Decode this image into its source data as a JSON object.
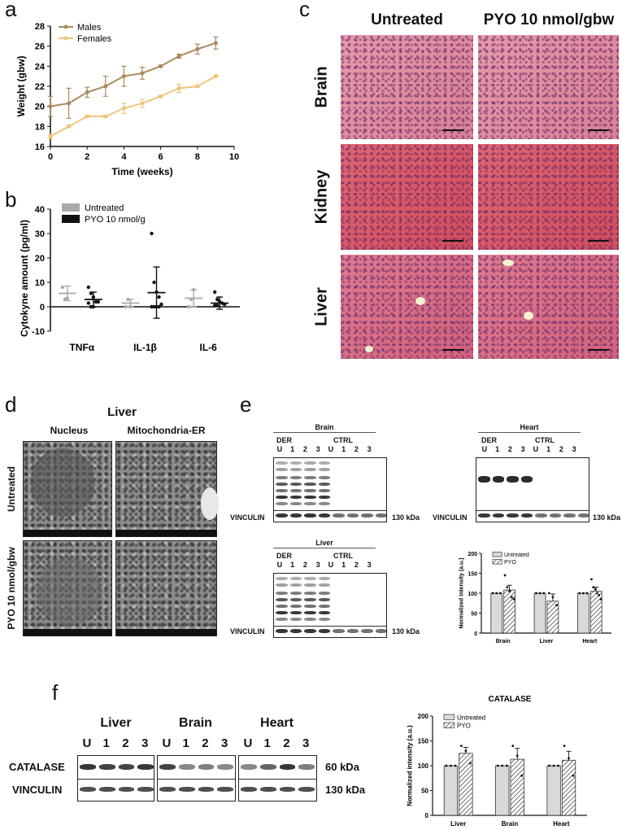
{
  "panels": {
    "a": "a",
    "b": "b",
    "c": "c",
    "d": "d",
    "e": "e",
    "f": "f"
  },
  "panel_c": {
    "col_headers": [
      "Untreated",
      "PYO 10 nmol/gbw"
    ],
    "row_labels": [
      "Brain",
      "Kidney",
      "Liver"
    ]
  },
  "panel_d": {
    "title": "Liver",
    "col_headers": [
      "Nucleus",
      "Mitochondria-ER"
    ],
    "row_labels": [
      "Untreated",
      "PYO 10 nmol/gbw"
    ]
  },
  "panel_e": {
    "blots": [
      {
        "tissue": "Brain",
        "group1": "DER",
        "group2": "CTRL",
        "lanes": [
          "U",
          "1",
          "2",
          "3",
          "U",
          "1",
          "2",
          "3"
        ],
        "loading": "VINCULIN",
        "kda": "130 kDa"
      },
      {
        "tissue": "Heart",
        "group1": "DER",
        "group2": "CTRL",
        "lanes": [
          "U",
          "1",
          "2",
          "3",
          "U",
          "1",
          "2",
          "3"
        ],
        "loading": "VINCULIN",
        "kda": "130 kDa"
      },
      {
        "tissue": "Liver",
        "group1": "DER",
        "group2": "CTRL",
        "lanes": [
          "U",
          "1",
          "2",
          "3",
          "U",
          "1",
          "2",
          "3"
        ],
        "loading": "VINCULIN",
        "kda": "130 kDa"
      }
    ]
  },
  "panel_f": {
    "tissues": [
      "Liver",
      "Brain",
      "Heart"
    ],
    "lanes": [
      "U",
      "1",
      "2",
      "3"
    ],
    "rows": [
      "CATALASE",
      "VINCULIN"
    ],
    "kda": [
      "60 kDa",
      "130 kDa"
    ]
  },
  "chart_data": [
    {
      "id": "a",
      "type": "line",
      "title": "",
      "xlabel": "Time (weeks)",
      "ylabel": "Weight (gbw)",
      "xlim": [
        0,
        10
      ],
      "ylim": [
        16,
        28
      ],
      "xticks": [
        0,
        2,
        4,
        6,
        8,
        10
      ],
      "yticks": [
        16,
        18,
        20,
        22,
        24,
        26,
        28
      ],
      "legend": "top-left",
      "x": [
        0,
        1,
        2,
        3,
        4,
        5,
        6,
        7,
        8,
        9
      ],
      "series": [
        {
          "name": "Males",
          "color": "#a88a5c",
          "values": [
            20,
            20.3,
            21.4,
            22,
            23,
            23.3,
            24,
            25,
            25.7,
            26.3
          ],
          "err": [
            1,
            1.5,
            0.5,
            1,
            1,
            0.6,
            0.1,
            0.2,
            0.5,
            0.6
          ]
        },
        {
          "name": "Females",
          "color": "#f0c57a",
          "values": [
            17,
            18,
            19,
            19,
            19.8,
            20.3,
            21,
            21.8,
            22,
            23
          ],
          "err": [
            0.2,
            0.1,
            0.1,
            0.1,
            0.5,
            0.4,
            0.1,
            0.4,
            0.1,
            0.1
          ]
        }
      ]
    },
    {
      "id": "b",
      "type": "scatter",
      "title": "",
      "xlabel": "",
      "ylabel": "Cytokyne amount (pg/ml)",
      "ylim": [
        -10,
        40
      ],
      "yticks": [
        -10,
        0,
        10,
        20,
        30,
        40
      ],
      "categories": [
        "TNFα",
        "IL-1β",
        "IL-6"
      ],
      "legend": "top-left",
      "series": [
        {
          "name": "Untreated",
          "color": "#aaaaaa",
          "mean": [
            5.5,
            1.5,
            3.5
          ],
          "err": [
            3,
            1.5,
            3.5
          ],
          "points": [
            [
              8,
              3,
              3.5
            ],
            [
              0,
              3,
              0
            ],
            [
              0,
              3,
              7
            ]
          ]
        },
        {
          "name": "PYO 10 nmol/g",
          "color": "#111111",
          "mean": [
            3,
            5.8,
            1.5
          ],
          "err": [
            3,
            10.5,
            2.5
          ],
          "points": [
            [
              8,
              5.5,
              4,
              2,
              2,
              1.5,
              0,
              0
            ],
            [
              30,
              10,
              6,
              4,
              1,
              0,
              0,
              0,
              0
            ],
            [
              6,
              3,
              2,
              1.5,
              1,
              0.5,
              0.5
            ]
          ]
        }
      ]
    },
    {
      "id": "e",
      "type": "bar",
      "title": "",
      "xlabel": "",
      "ylabel": "Normalized intensity (a.u.)",
      "ylim": [
        0,
        200
      ],
      "yticks": [
        0,
        50,
        100,
        150,
        200
      ],
      "categories": [
        "Brain",
        "Liver",
        "Heart"
      ],
      "legend": "top-left",
      "series": [
        {
          "name": "Untreated",
          "values": [
            100,
            100,
            100
          ],
          "err": [
            0,
            0,
            0
          ],
          "points": [
            [
              100,
              100,
              100
            ],
            [
              100,
              100,
              100
            ],
            [
              100,
              100,
              100
            ]
          ]
        },
        {
          "name": "PYO",
          "values": [
            108,
            80,
            105
          ],
          "err": [
            12,
            18,
            10
          ],
          "points": [
            [
              145,
              115,
              105,
              90,
              85
            ],
            [
              100,
              90,
              70
            ],
            [
              135,
              115,
              110,
              100,
              95,
              85
            ]
          ]
        }
      ]
    },
    {
      "id": "f",
      "type": "bar",
      "title": "CATALASE",
      "xlabel": "",
      "ylabel": "Normalized intensity (a.u.)",
      "ylim": [
        0,
        200
      ],
      "yticks": [
        0,
        50,
        100,
        150,
        200
      ],
      "categories": [
        "Liver",
        "Brain",
        "Heart"
      ],
      "legend": "top-left",
      "series": [
        {
          "name": "Untreated",
          "values": [
            100,
            100,
            100
          ],
          "err": [
            0,
            0,
            0
          ],
          "points": [
            [
              100,
              100,
              100
            ],
            [
              100,
              100,
              100
            ],
            [
              100,
              100,
              100
            ]
          ]
        },
        {
          "name": "PYO",
          "values": [
            125,
            113,
            111
          ],
          "err": [
            12,
            22,
            18
          ],
          "points": [
            [
              140,
              130,
              105
            ],
            [
              140,
              120,
              80
            ],
            [
              140,
              115,
              80
            ]
          ]
        }
      ]
    }
  ]
}
